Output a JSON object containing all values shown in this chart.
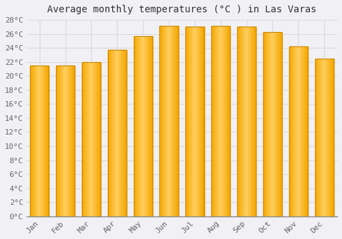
{
  "title": "Average monthly temperatures (°C ) in Las Varas",
  "months": [
    "Jan",
    "Feb",
    "Mar",
    "Apr",
    "May",
    "Jun",
    "Jul",
    "Aug",
    "Sep",
    "Oct",
    "Nov",
    "Dec"
  ],
  "values": [
    21.5,
    21.5,
    22.0,
    23.7,
    25.7,
    27.1,
    27.0,
    27.1,
    27.0,
    26.3,
    24.2,
    22.5
  ],
  "bar_color_left": "#F5A800",
  "bar_color_center": "#FFD060",
  "bar_color_right": "#E89000",
  "ylim": [
    0,
    28
  ],
  "background_color": "#f0f0f5",
  "plot_bg_color": "#f0f0f5",
  "grid_color": "#d8d8e0",
  "title_fontsize": 10,
  "tick_fontsize": 8,
  "font_family": "monospace",
  "tick_color": "#666666",
  "spine_color": "#888888"
}
